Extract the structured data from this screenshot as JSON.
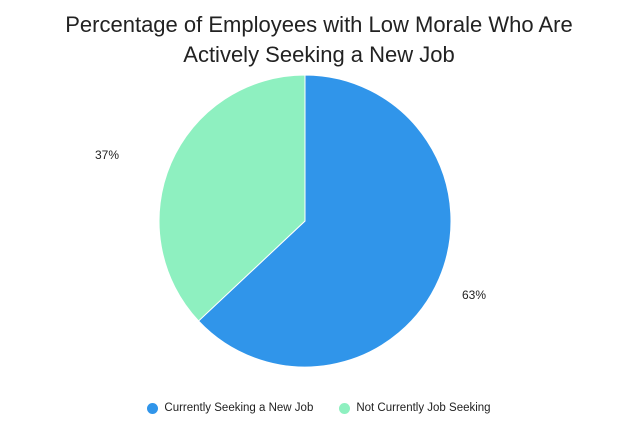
{
  "chart_data": {
    "type": "pie",
    "title_lines": [
      "Percentage of Employees with Low Morale Who Are",
      "Actively Seeking a New Job"
    ],
    "slices": [
      {
        "name": "Currently Seeking a New Job",
        "value": 63,
        "label": "63%",
        "color": "#3095ea"
      },
      {
        "name": "Not Currently Job Seeking",
        "value": 37,
        "label": "37%",
        "color": "#8ef0c0"
      }
    ],
    "legend_position": "bottom"
  }
}
